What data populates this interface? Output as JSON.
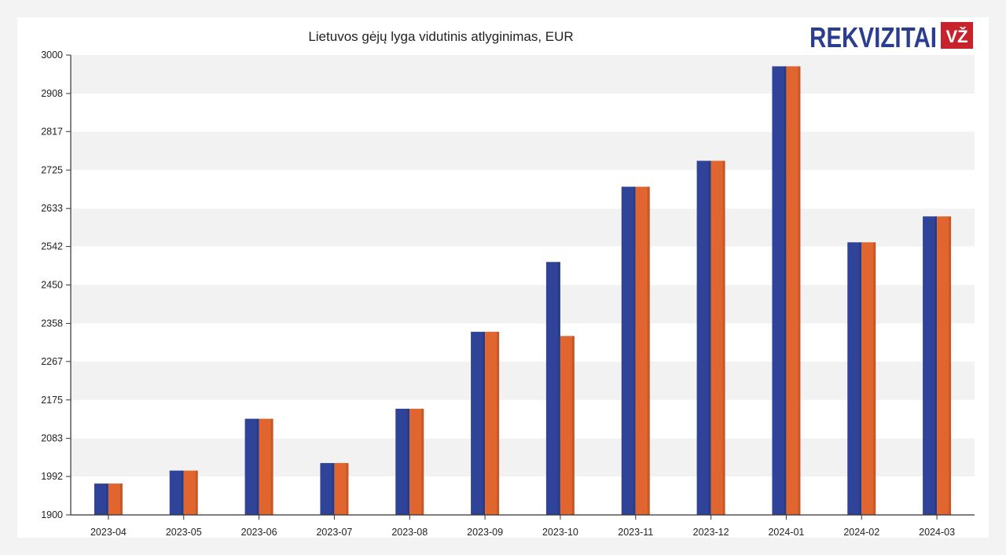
{
  "logo": {
    "brand": "REKVIZITAI",
    "badge": "VŽ",
    "brand_color": "#2b3d8f",
    "badge_color": "#c8232c"
  },
  "chart_data": {
    "type": "bar",
    "title": "Lietuvos gėjų lyga vidutinis atlyginimas, EUR",
    "xlabel": "",
    "ylabel": "",
    "categories": [
      "2023-04",
      "2023-05",
      "2023-06",
      "2023-07",
      "2023-08",
      "2023-09",
      "2023-10",
      "2023-11",
      "2023-12",
      "2024-01",
      "2024-02",
      "2024-03"
    ],
    "series": [
      {
        "color": "#2f4399",
        "values": [
          1975,
          2006,
          2130,
          2024,
          2154,
          2338,
          2505,
          2685,
          2747,
          2973,
          2552,
          2614
        ]
      },
      {
        "color": "#e0652e",
        "values": [
          1975,
          2006,
          2130,
          2024,
          2154,
          2338,
          2328,
          2685,
          2747,
          2973,
          2552,
          2614
        ]
      }
    ],
    "ylim": [
      1900,
      3000
    ],
    "yticks": [
      "1900",
      "1992",
      "2083",
      "2175",
      "2267",
      "2358",
      "2450",
      "2542",
      "2633",
      "2725",
      "2817",
      "2908",
      "3000"
    ],
    "grid": "alternating horizontal bands",
    "legend": "none"
  }
}
